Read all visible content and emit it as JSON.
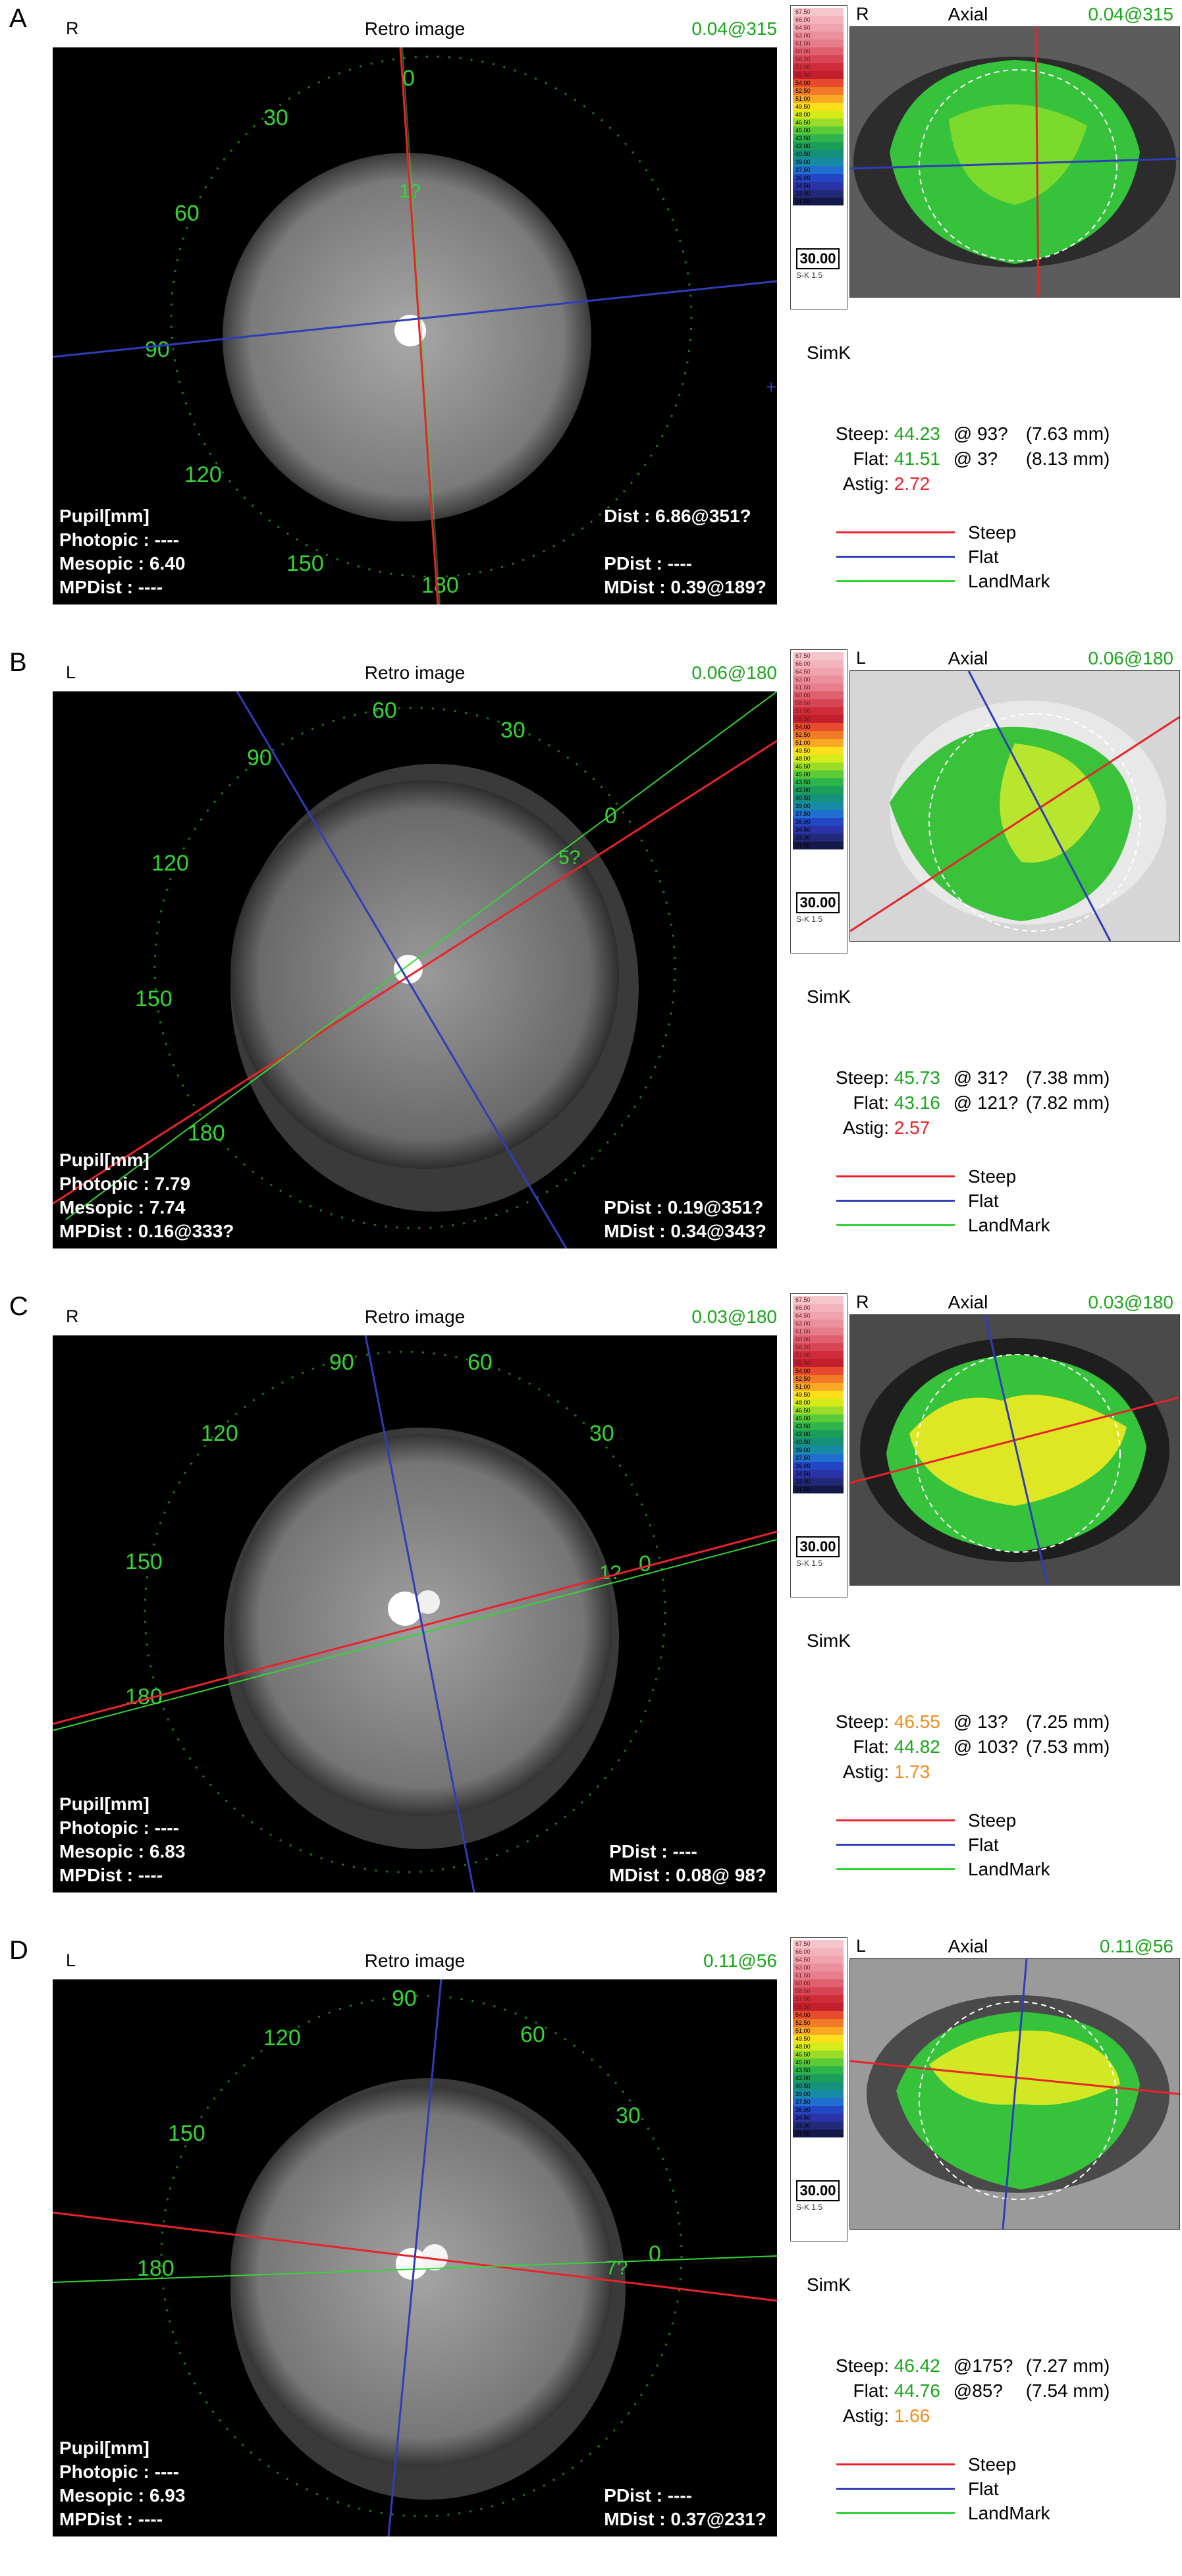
{
  "colors": {
    "steep": "#e8232a",
    "flat": "#2f3db8",
    "landmark": "#36d536",
    "readout_green": "#1aa61a",
    "value_red": "#e8232a",
    "value_orange": "#f08c1a",
    "retro_background": "#000000"
  },
  "scale_values": [
    "67.50",
    "66.00",
    "64.50",
    "63.00",
    "61.50",
    "60.00",
    "58.50",
    "57.00",
    "55.50",
    "54.00",
    "52.50",
    "51.00",
    "49.50",
    "48.00",
    "46.50",
    "45.00",
    "43.50",
    "42.00",
    "40.50",
    "39.00",
    "37.50",
    "36.00",
    "34.50",
    "33.00",
    "31.50"
  ],
  "scale_colors": [
    "#f6c6cd",
    "#f3b4bd",
    "#f0a2ad",
    "#ec8f9c",
    "#e77c8b",
    "#e0606f",
    "#d84656",
    "#cf2c3a",
    "#c2202c",
    "#e84a2e",
    "#f07a26",
    "#f9a825",
    "#fde01a",
    "#d6ec1a",
    "#9bdc29",
    "#5bcb3a",
    "#2eb44a",
    "#1b9e5a",
    "#16907a",
    "#178aa5",
    "#1f6fd0",
    "#2347c4",
    "#2a34a6",
    "#232a7a",
    "#15194a"
  ],
  "panels": [
    {
      "letter": "A",
      "retro": {
        "eye": "R",
        "title": "Retro image",
        "readout": "0.04@315",
        "angles": [
          "0",
          "30",
          "60",
          "90",
          "120",
          "150",
          "180"
        ],
        "marker": "1?",
        "info_left": [
          "Pupil[mm]",
          "Photopic : ----",
          "Mesopic : 6.40",
          "MPDist : ----"
        ],
        "info_right": [
          "Dist : 6.86@351?",
          "",
          "PDist : ----",
          "MDist : 0.39@189?"
        ]
      },
      "axial": {
        "eye": "R",
        "title": "Axial",
        "readout": "0.04@315",
        "base": "30.00",
        "sk": "S-K 1.5"
      },
      "simk": {
        "title": "SimK",
        "steep": {
          "label": "Steep:",
          "value": "44.23",
          "axis": "@ 93?",
          "mm": "(7.63 mm)"
        },
        "flat": {
          "label": "Flat:",
          "value": "41.51",
          "axis": "@ 3?",
          "mm": "(8.13 mm)"
        },
        "astig": {
          "label": "Astig:",
          "value": "2.72"
        }
      },
      "legend": {
        "steep": "Steep",
        "flat": "Flat",
        "landmark": "LandMark"
      }
    },
    {
      "letter": "B",
      "retro": {
        "eye": "L",
        "title": "Retro image",
        "readout": "0.06@180",
        "angles": [
          "0",
          "30",
          "60",
          "90",
          "120",
          "150",
          "180"
        ],
        "marker": "5?",
        "info_left": [
          "Pupil[mm]",
          "Photopic : 7.79",
          "Mesopic : 7.74",
          "MPDist : 0.16@333?"
        ],
        "info_right": [
          "",
          "",
          "PDist : 0.19@351?",
          "MDist : 0.34@343?"
        ]
      },
      "axial": {
        "eye": "L",
        "title": "Axial",
        "readout": "0.06@180",
        "base": "30.00",
        "sk": "S-K 1.5"
      },
      "simk": {
        "title": "SimK",
        "steep": {
          "label": "Steep:",
          "value": "45.73",
          "axis": "@ 31?",
          "mm": "(7.38 mm)"
        },
        "flat": {
          "label": "Flat:",
          "value": "43.16",
          "axis": "@ 121?",
          "mm": "(7.82 mm)"
        },
        "astig": {
          "label": "Astig:",
          "value": "2.57"
        }
      },
      "legend": {
        "steep": "Steep",
        "flat": "Flat",
        "landmark": "LandMark"
      }
    },
    {
      "letter": "C",
      "retro": {
        "eye": "R",
        "title": "Retro image",
        "readout": "0.03@180",
        "angles": [
          "0",
          "30",
          "60",
          "90",
          "120",
          "150",
          "180"
        ],
        "marker": "1?",
        "info_left": [
          "Pupil[mm]",
          "Photopic : ----",
          "Mesopic : 6.83",
          "MPDist : ----"
        ],
        "info_right": [
          "",
          "",
          "PDist : ----",
          "MDist : 0.08@ 98?"
        ]
      },
      "axial": {
        "eye": "R",
        "title": "Axial",
        "readout": "0.03@180",
        "base": "30.00",
        "sk": "S-K 1.5"
      },
      "simk": {
        "title": "SimK",
        "steep": {
          "label": "Steep:",
          "value": "46.55",
          "axis": "@ 13?",
          "mm": "(7.25 mm)"
        },
        "flat": {
          "label": "Flat:",
          "value": "44.82",
          "axis": "@ 103?",
          "mm": "(7.53 mm)"
        },
        "astig": {
          "label": "Astig:",
          "value": "1.73"
        }
      },
      "legend": {
        "steep": "Steep",
        "flat": "Flat",
        "landmark": "LandMark"
      }
    },
    {
      "letter": "D",
      "retro": {
        "eye": "L",
        "title": "Retro image",
        "readout": "0.11@56",
        "angles": [
          "0",
          "30",
          "60",
          "90",
          "120",
          "150",
          "180"
        ],
        "marker": "7?",
        "info_left": [
          "Pupil[mm]",
          "Photopic : ----",
          "Mesopic : 6.93",
          "MPDist : ----"
        ],
        "info_right": [
          "",
          "",
          "PDist : ----",
          "MDist : 0.37@231?"
        ]
      },
      "axial": {
        "eye": "L",
        "title": "Axial",
        "readout": "0.11@56",
        "base": "30.00",
        "sk": "S-K 1.5"
      },
      "simk": {
        "title": "SimK",
        "steep": {
          "label": "Steep:",
          "value": "46.42",
          "axis": "@175?",
          "mm": "(7.27 mm)"
        },
        "flat": {
          "label": "Flat:",
          "value": "44.76",
          "axis": "@85?",
          "mm": "(7.54 mm)"
        },
        "astig": {
          "label": "Astig:",
          "value": "1.66"
        }
      },
      "legend": {
        "steep": "Steep",
        "flat": "Flat",
        "landmark": "LandMark"
      }
    }
  ]
}
